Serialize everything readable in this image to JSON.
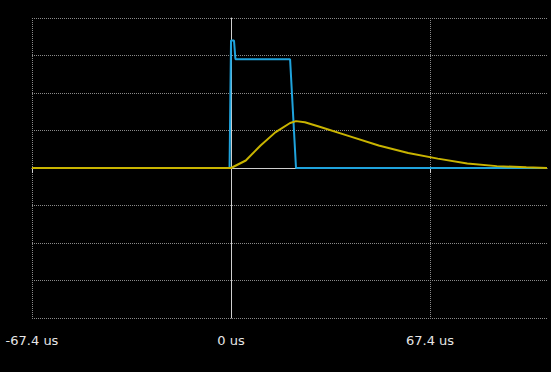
{
  "chart_data": {
    "type": "line",
    "series": [
      {
        "color": "#1fa3dc",
        "x": [
          -67.4,
          -0.5,
          0,
          1,
          1.5,
          20,
          22,
          107
        ],
        "values": [
          0,
          0,
          3.4,
          3.4,
          2.9,
          2.9,
          0,
          0
        ]
      },
      {
        "color": "#c9b400",
        "x": [
          -67.4,
          -10,
          0,
          5,
          10,
          15,
          20,
          22,
          25,
          30,
          40,
          50,
          60,
          70,
          80,
          90,
          100,
          107
        ],
        "values": [
          0,
          0,
          0,
          0.2,
          0.6,
          0.95,
          1.2,
          1.25,
          1.22,
          1.1,
          0.85,
          0.6,
          0.4,
          0.25,
          0.12,
          0.05,
          0.02,
          0
        ]
      }
    ],
    "xlim": [
      -67.4,
      107
    ],
    "xticks": [
      {
        "value": -67.4,
        "label": "-67.4 us"
      },
      {
        "value": 0,
        "label": "0 us"
      },
      {
        "value": 67.4,
        "label": "67.4 us"
      }
    ],
    "ylim": [
      -4,
      4
    ],
    "yticks": [
      -4,
      -3,
      -2,
      -1,
      0,
      1,
      2,
      3,
      4
    ],
    "grid": true,
    "tick_labels": "x"
  }
}
